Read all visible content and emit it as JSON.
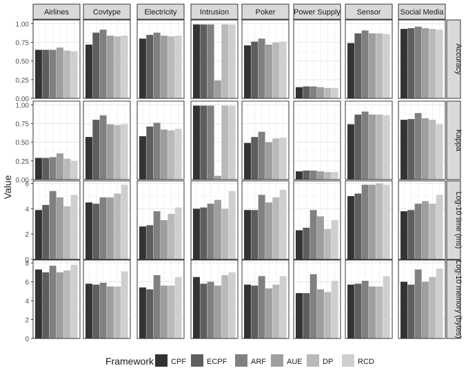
{
  "chart_data": {
    "type": "bar",
    "ylabel": "Value",
    "legend": {
      "title": "Framework",
      "placement": "bottom"
    },
    "frameworks": [
      "CPF",
      "ECPF",
      "ARF",
      "AUE",
      "DP",
      "RCD"
    ],
    "colors": [
      "#333333",
      "#5e5e5e",
      "#808080",
      "#9e9e9e",
      "#b9b9b9",
      "#cfcfcf"
    ],
    "columns": [
      "Airlines",
      "Covtype",
      "Electricity",
      "Intrusion",
      "Poker",
      "Power Supply",
      "Sensor",
      "Social Media"
    ],
    "rows": [
      {
        "label": "Accuracy",
        "ylim": [
          0,
          1.05
        ],
        "ticks": [
          "0.00",
          "0.25",
          "0.50",
          "0.75",
          "1.00"
        ],
        "tick_values": [
          0,
          0.25,
          0.5,
          0.75,
          1.0
        ],
        "values": [
          [
            0.65,
            0.65,
            0.65,
            0.68,
            0.64,
            0.63
          ],
          [
            0.72,
            0.88,
            0.92,
            0.84,
            0.83,
            0.84
          ],
          [
            0.8,
            0.85,
            0.88,
            0.84,
            0.83,
            0.84
          ],
          [
            0.99,
            0.99,
            0.99,
            0.24,
            0.99,
            0.99
          ],
          [
            0.71,
            0.76,
            0.8,
            0.72,
            0.75,
            0.76
          ],
          [
            0.15,
            0.16,
            0.16,
            0.15,
            0.14,
            0.14
          ],
          [
            0.74,
            0.87,
            0.91,
            0.87,
            0.87,
            0.86
          ],
          [
            0.93,
            0.94,
            0.96,
            0.94,
            0.93,
            0.92
          ]
        ]
      },
      {
        "label": "Kappa",
        "ylim": [
          0,
          1.05
        ],
        "ticks": [
          "0.00",
          "0.25",
          "0.50",
          "0.75",
          "1.00"
        ],
        "tick_values": [
          0,
          0.25,
          0.5,
          0.75,
          1.0
        ],
        "values": [
          [
            0.29,
            0.29,
            0.3,
            0.35,
            0.28,
            0.25
          ],
          [
            0.57,
            0.8,
            0.86,
            0.74,
            0.73,
            0.74
          ],
          [
            0.58,
            0.71,
            0.76,
            0.67,
            0.66,
            0.68
          ],
          [
            0.99,
            0.99,
            0.99,
            0.05,
            0.99,
            0.99
          ],
          [
            0.49,
            0.57,
            0.64,
            0.5,
            0.55,
            0.56
          ],
          [
            0.11,
            0.12,
            0.12,
            0.11,
            0.1,
            0.1
          ],
          [
            0.74,
            0.87,
            0.91,
            0.87,
            0.87,
            0.86
          ],
          [
            0.8,
            0.81,
            0.89,
            0.82,
            0.8,
            0.74
          ]
        ]
      },
      {
        "label": "Log-10 time (ms)",
        "ylim": [
          0,
          6.2
        ],
        "ticks": [
          "0",
          "2",
          "4",
          "6"
        ],
        "tick_values": [
          0,
          2,
          4,
          6
        ],
        "values": [
          [
            3.9,
            4.3,
            5.4,
            4.9,
            4.2,
            5.1
          ],
          [
            4.5,
            4.4,
            4.9,
            4.9,
            5.2,
            5.9
          ],
          [
            2.6,
            2.7,
            3.8,
            3.1,
            3.6,
            4.1
          ],
          [
            4.0,
            4.1,
            4.4,
            4.7,
            4.0,
            5.4
          ],
          [
            3.9,
            3.9,
            5.1,
            4.5,
            4.9,
            5.5
          ],
          [
            2.3,
            2.5,
            3.9,
            3.4,
            2.4,
            3.1
          ],
          [
            5.0,
            5.2,
            5.9,
            5.9,
            6.0,
            5.9
          ],
          [
            3.8,
            3.9,
            4.4,
            4.6,
            4.4,
            5.1
          ]
        ]
      },
      {
        "label": "Log-10 memory (bytes)",
        "ylim": [
          0,
          8.3
        ],
        "ticks": [
          "0",
          "2",
          "4",
          "6",
          "8"
        ],
        "tick_values": [
          0,
          2,
          4,
          6,
          8
        ],
        "values": [
          [
            7.3,
            7.0,
            7.7,
            7.0,
            7.2,
            7.8
          ],
          [
            5.8,
            5.7,
            5.9,
            5.5,
            5.5,
            7.1
          ],
          [
            5.4,
            5.2,
            6.7,
            5.6,
            5.6,
            6.5
          ],
          [
            6.5,
            5.8,
            6.0,
            5.6,
            6.7,
            7.0
          ],
          [
            5.7,
            5.6,
            6.6,
            5.3,
            5.7,
            6.6
          ],
          [
            4.8,
            4.8,
            6.8,
            5.2,
            4.9,
            6.1
          ],
          [
            5.7,
            5.8,
            6.1,
            5.5,
            5.5,
            6.6
          ],
          [
            6.0,
            5.7,
            7.3,
            6.0,
            6.5,
            7.4
          ]
        ]
      }
    ]
  }
}
